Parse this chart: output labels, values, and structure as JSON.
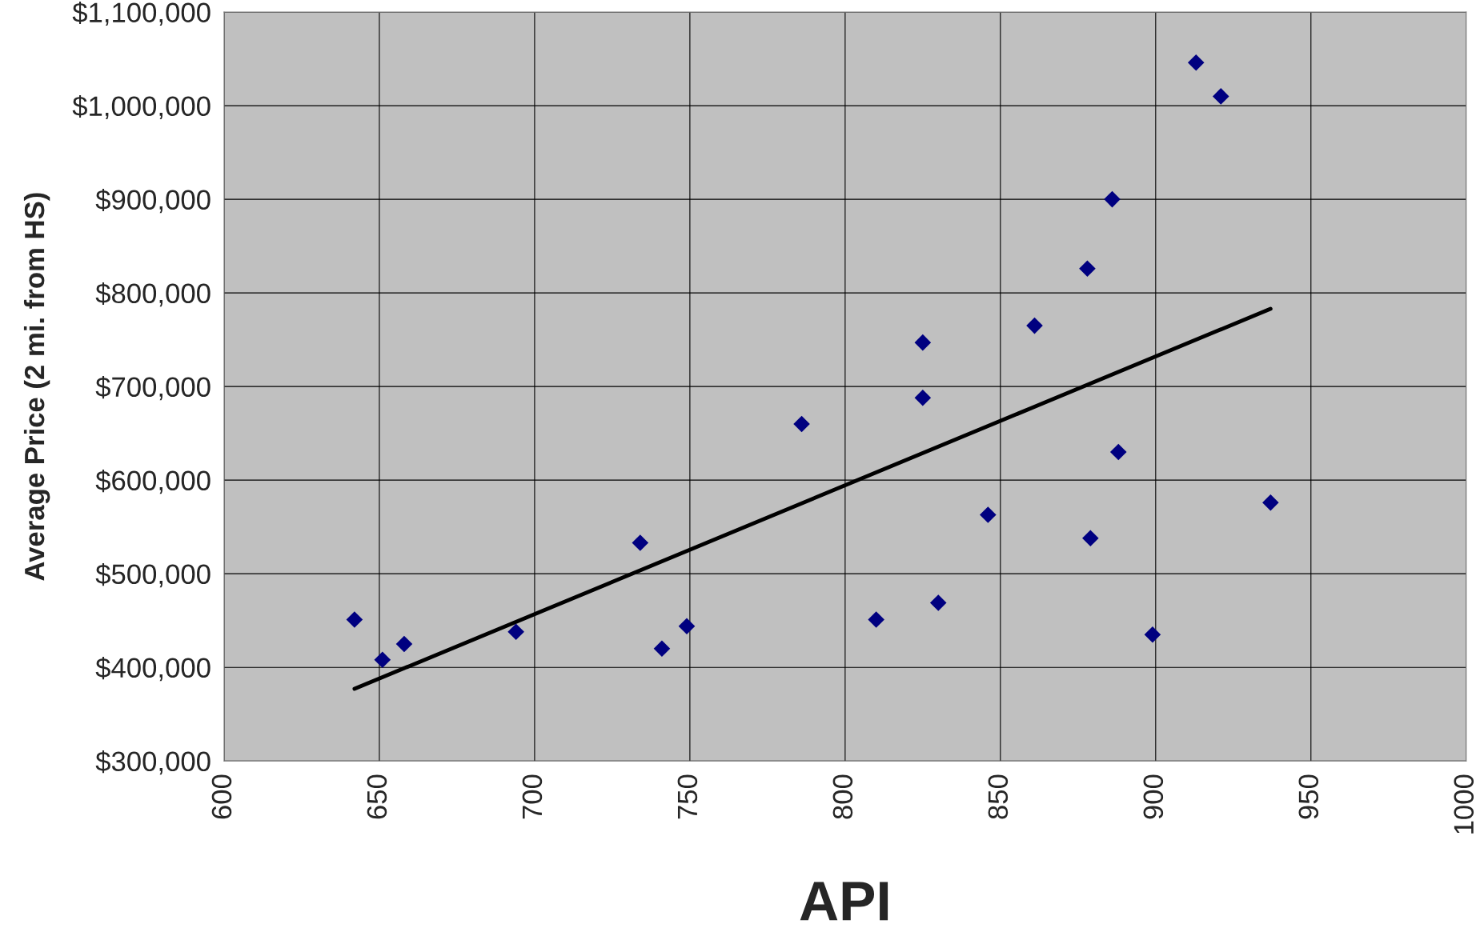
{
  "chart_data": {
    "type": "scatter",
    "xlabel": "API",
    "ylabel": "Average Price (2 mi. from HS)",
    "series": [
      {
        "color": "#000080",
        "marker": "diamond",
        "x": [
          642,
          651,
          658,
          694,
          734,
          741,
          749,
          786,
          810,
          825,
          825,
          830,
          846,
          861,
          878,
          879,
          886,
          888,
          899,
          913,
          921,
          937
        ],
        "values": [
          451000,
          408000,
          425000,
          438000,
          533000,
          420000,
          444000,
          660000,
          451000,
          747000,
          688000,
          469000,
          563000,
          765000,
          826000,
          538000,
          900000,
          630000,
          435000,
          1046000,
          1010000,
          576000
        ]
      },
      {
        "type": "line",
        "color": "#000000",
        "marker": "none",
        "line_style": "solid",
        "x": [
          642,
          937
        ],
        "values": [
          377000,
          783000
        ]
      }
    ],
    "xlim": [
      600,
      1000
    ],
    "xticks": [
      600,
      650,
      700,
      750,
      800,
      850,
      900,
      950,
      1000
    ],
    "ylim": [
      300000,
      1100000
    ],
    "yticks": [
      {
        "value": 300000,
        "label": "$300,000"
      },
      {
        "value": 400000,
        "label": "$400,000"
      },
      {
        "value": 500000,
        "label": "$500,000"
      },
      {
        "value": 600000,
        "label": "$600,000"
      },
      {
        "value": 700000,
        "label": "$700,000"
      },
      {
        "value": 800000,
        "label": "$800,000"
      },
      {
        "value": 900000,
        "label": "$900,000"
      },
      {
        "value": 1000000,
        "label": "$1,000,000"
      },
      {
        "value": 1100000,
        "label": "$1,100,000"
      }
    ],
    "grid": true,
    "legend": false
  }
}
